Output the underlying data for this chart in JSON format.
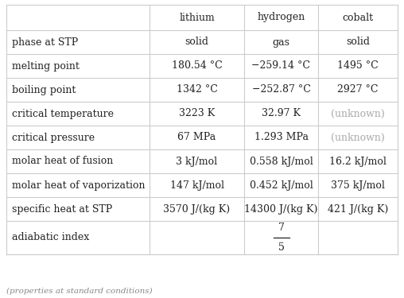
{
  "headers": [
    "",
    "lithium",
    "hydrogen",
    "cobalt"
  ],
  "rows": [
    [
      "phase at STP",
      "solid",
      "gas",
      "solid"
    ],
    [
      "melting point",
      "180.54 °C",
      "−259.14 °C",
      "1495 °C"
    ],
    [
      "boiling point",
      "1342 °C",
      "−252.87 °C",
      "2927 °C"
    ],
    [
      "critical temperature",
      "3223 K",
      "32.97 K",
      "(unknown)"
    ],
    [
      "critical pressure",
      "67 MPa",
      "1.293 MPa",
      "(unknown)"
    ],
    [
      "molar heat of fusion",
      "3 kJ/mol",
      "0.558 kJ/mol",
      "16.2 kJ/mol"
    ],
    [
      "molar heat of vaporization",
      "147 kJ/mol",
      "0.452 kJ/mol",
      "375 kJ/mol"
    ],
    [
      "specific heat at STP",
      "3570 J/(kg K)",
      "14300 J/(kg K)",
      "421 J/(kg K)"
    ],
    [
      "adiabatic index",
      "",
      "7/5",
      ""
    ]
  ],
  "footer": "(properties at standard conditions)",
  "unknown_color": "#aaaaaa",
  "text_color": "#222222",
  "bg_color": "#ffffff",
  "line_color": "#cccccc",
  "font_size": 9.0,
  "footer_font_size": 7.5
}
